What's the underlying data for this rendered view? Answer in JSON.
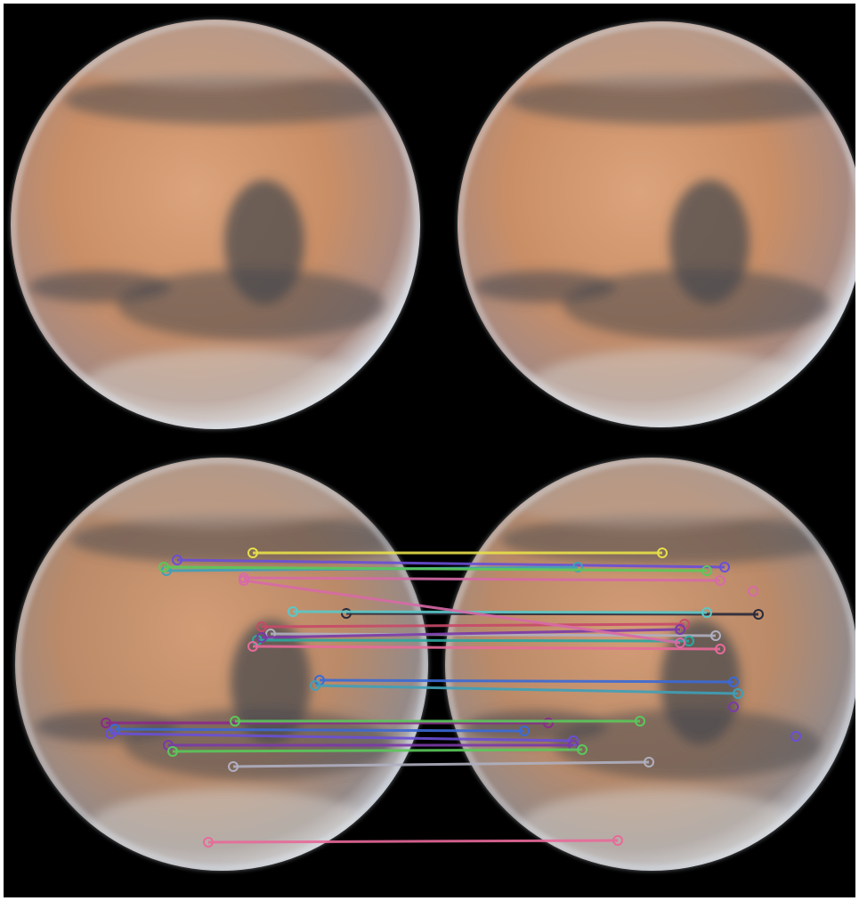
{
  "figure": {
    "background_color": "#000000",
    "planet_color_light": "#d9a27a",
    "planet_color_mid": "#c2865e",
    "planet_color_dark": "#4a4a4e",
    "limb_color": "#dfe8f2",
    "panels": [
      {
        "name": "mars-original-left"
      },
      {
        "name": "mars-original-right"
      },
      {
        "name": "mars-matched-left"
      },
      {
        "name": "mars-matched-right"
      }
    ],
    "feature_match_colors": [
      "#e8e04a",
      "#6a4fd8",
      "#3fa0b8",
      "#d86aa8",
      "#5ac85a",
      "#8a2a8a",
      "#c84a6a",
      "#3a6ad8",
      "#b0b0c0",
      "#2aa8a0",
      "#e86a9a",
      "#7a3aa8",
      "#5ac8c8",
      "#a8a82a",
      "#2a2a3a"
    ]
  }
}
